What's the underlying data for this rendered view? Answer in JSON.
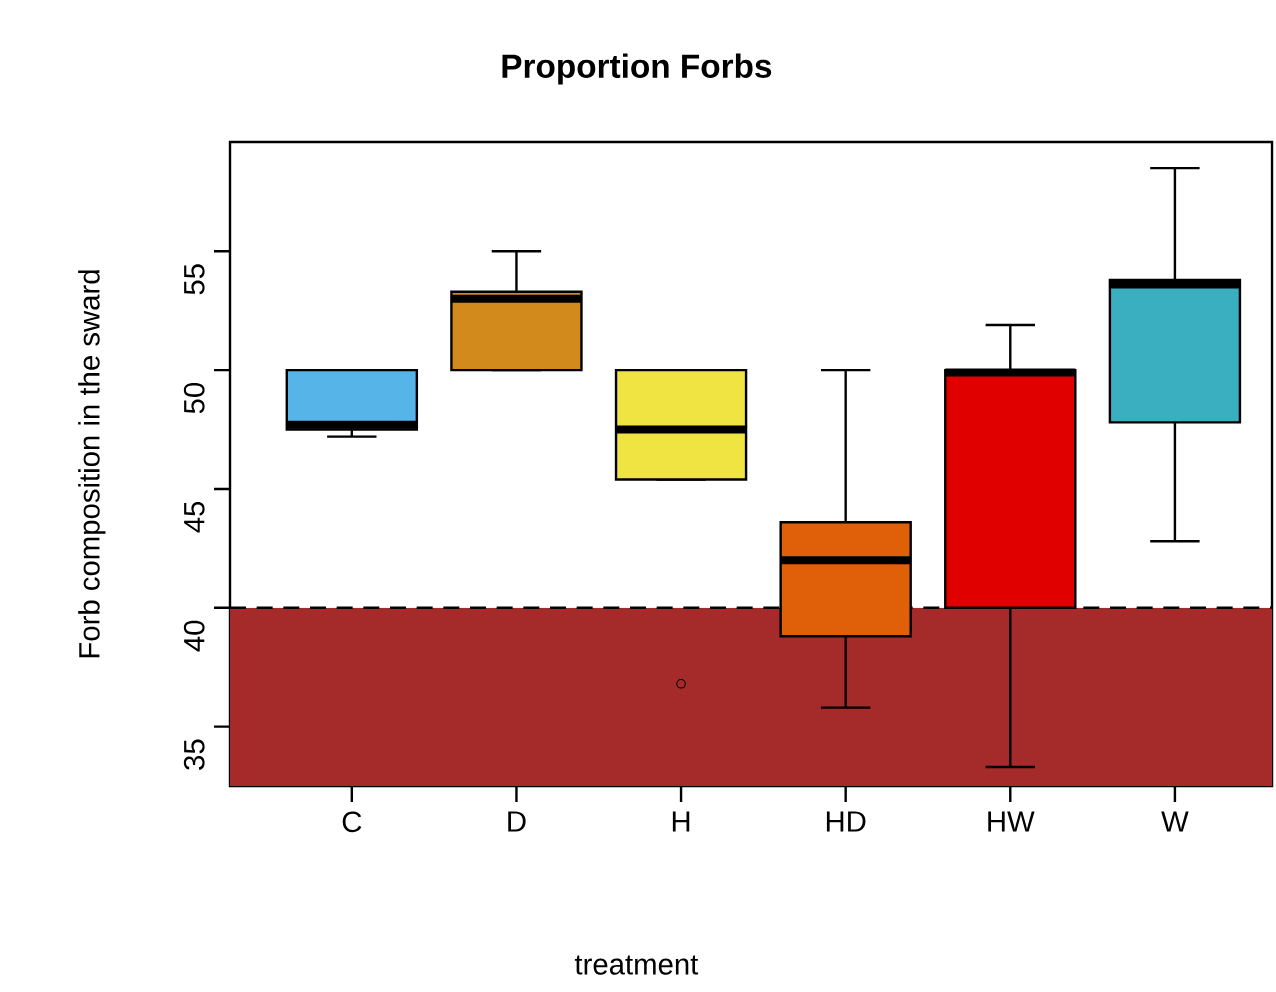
{
  "chart_data": {
    "type": "box",
    "title": "Proportion Forbs",
    "xlabel": "treatment",
    "ylabel": "Forb composition in the sward",
    "categories": [
      "C",
      "D",
      "H",
      "HD",
      "HW",
      "W"
    ],
    "colors": [
      "#56b4e9",
      "#d18a1b",
      "#f0e442",
      "#e0600a",
      "#e00000",
      "#3aafc0"
    ],
    "boxes": [
      {
        "low": 47.2,
        "q1": 47.5,
        "median": 47.7,
        "q3": 50,
        "high": 50
      },
      {
        "low": 50,
        "q1": 50,
        "median": 53.0,
        "q3": 53.3,
        "high": 55
      },
      {
        "low": 45.4,
        "q1": 45.4,
        "median": 47.5,
        "q3": 50,
        "high": 50,
        "outliers": [
          36.8
        ]
      },
      {
        "low": 35.8,
        "q1": 38.8,
        "median": 42.0,
        "q3": 43.6,
        "high": 50
      },
      {
        "low": 33.3,
        "q1": 40,
        "median": 49.9,
        "q3": 50,
        "high": 51.9
      },
      {
        "low": 42.8,
        "q1": 47.8,
        "median": 53.6,
        "q3": 53.8,
        "high": 58.5
      }
    ],
    "ylim": [
      32.5,
      59.6
    ],
    "yticks": [
      35,
      40,
      45,
      50,
      55
    ],
    "grid": false,
    "ref_lines": [
      {
        "axis": "y",
        "value": 40,
        "line_style": "dashed"
      }
    ],
    "bands": [
      {
        "axis": "y",
        "from": 32.5,
        "to": 40,
        "color": "#a52a2a"
      }
    ]
  }
}
